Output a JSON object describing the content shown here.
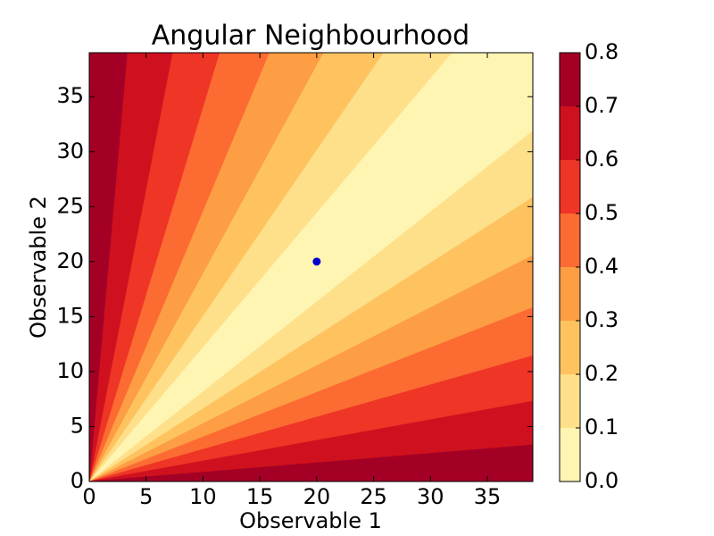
{
  "chart_data": {
    "type": "contourf",
    "title": "Angular Neighbourhood",
    "xlabel": "Observable 1",
    "ylabel": "Observable 2",
    "xlim": [
      0,
      39
    ],
    "ylim": [
      0,
      39
    ],
    "xticks": [
      0,
      5,
      10,
      15,
      20,
      25,
      30,
      35
    ],
    "yticks": [
      0,
      5,
      10,
      15,
      20,
      25,
      30,
      35
    ],
    "levels": [
      0.0,
      0.1,
      0.2,
      0.3,
      0.4,
      0.5,
      0.6,
      0.7,
      0.8
    ],
    "level_labels": [
      "0.0",
      "0.1",
      "0.2",
      "0.3",
      "0.4",
      "0.5",
      "0.6",
      "0.7",
      "0.8"
    ],
    "colors": [
      "#fff5b3",
      "#fee08b",
      "#fec35f",
      "#fd9d44",
      "#fc6b32",
      "#ee3526",
      "#cf111f",
      "#a40026"
    ],
    "point": {
      "x": 20,
      "y": 20,
      "color": "#0000d0"
    }
  }
}
